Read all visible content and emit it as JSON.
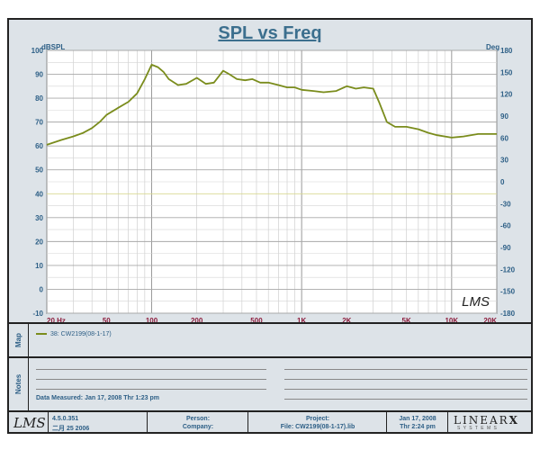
{
  "chart_data": {
    "type": "line",
    "title": "SPL vs Freq",
    "ylabel_left": "dBSPL",
    "ylabel_right": "Deg",
    "x_scale": "log",
    "xlim": [
      20,
      20000
    ],
    "ylim": [
      -10,
      100
    ],
    "y2lim": [
      -180,
      180
    ],
    "x_ticks": [
      {
        "v": 20,
        "label": "20 Hz"
      },
      {
        "v": 50,
        "label": "50"
      },
      {
        "v": 100,
        "label": "100"
      },
      {
        "v": 200,
        "label": "200"
      },
      {
        "v": 500,
        "label": "500"
      },
      {
        "v": 1000,
        "label": "1K"
      },
      {
        "v": 2000,
        "label": "2K"
      },
      {
        "v": 5000,
        "label": "5K"
      },
      {
        "v": 10000,
        "label": "10K"
      },
      {
        "v": 20000,
        "label": "20K"
      }
    ],
    "y_ticks": [
      "100",
      "90",
      "80",
      "70",
      "60",
      "50",
      "40",
      "30",
      "20",
      "10",
      "0",
      "-10"
    ],
    "y2_ticks": [
      "180",
      "150",
      "120",
      "90",
      "60",
      "30",
      "0",
      "-30",
      "-60",
      "-90",
      "-120",
      "-150",
      "-180"
    ],
    "grid": true,
    "series": [
      {
        "name": "38: CW2199(08-1-17)",
        "color": "#7a8c1c",
        "x": [
          20,
          25,
          30,
          35,
          40,
          45,
          50,
          60,
          70,
          80,
          90,
          100,
          110,
          120,
          130,
          150,
          170,
          200,
          230,
          260,
          300,
          330,
          370,
          420,
          470,
          530,
          600,
          700,
          800,
          900,
          1000,
          1200,
          1400,
          1700,
          2000,
          2300,
          2600,
          3000,
          3300,
          3700,
          4200,
          5000,
          6000,
          7000,
          8000,
          10000,
          12000,
          15000,
          20000
        ],
        "y": [
          60.5,
          62.5,
          64,
          65.5,
          67.5,
          70,
          73,
          76,
          78.5,
          82,
          88,
          94,
          93,
          91,
          88,
          85.5,
          86,
          88.5,
          86,
          86.5,
          91.5,
          90,
          88,
          87.5,
          88,
          86.5,
          86.5,
          85.5,
          84.5,
          84.5,
          83.5,
          83,
          82.5,
          83,
          85,
          84,
          84.5,
          84,
          78,
          70,
          68,
          68,
          67,
          65.5,
          64.5,
          63.5,
          64,
          65,
          65
        ]
      }
    ]
  },
  "branding": {
    "watermark": "LMS",
    "footer_logo": "LMS",
    "brand_name": "LINEAR",
    "brand_x": "X",
    "brand_sub": "S Y S T E M S"
  },
  "map": {
    "label": "Map",
    "entries": [
      {
        "label": "38: CW2199(08-1-17)",
        "color": "#7a8c1c"
      }
    ]
  },
  "notes": {
    "label": "Notes",
    "date_measured": "Data Measured: Jan 17, 2008  Thr  1:23 pm"
  },
  "footer": {
    "version": "4.5.0.351",
    "build_date": "二月 25 2006",
    "person_label": "Person:",
    "company_label": "Company:",
    "project_label": "Project:",
    "file_label": "File: CW2199(08-1-17).lib",
    "date": "Jan 17, 2008",
    "time": "Thr  2:24 pm"
  }
}
